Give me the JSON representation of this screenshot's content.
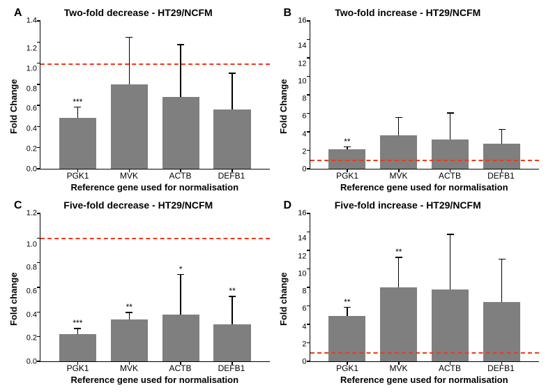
{
  "bar_color": "#7f7f7f",
  "refline_color": "#e83c1c",
  "axis_color": "#000000",
  "background_color": "#ffffff",
  "title_fontsize": 14,
  "label_fontsize": 13,
  "tick_fontsize": 11,
  "categories": [
    "PGK1",
    "MVK",
    "ACTB",
    "DEFB1"
  ],
  "xlabel": "Reference gene used for normalisation",
  "panels": {
    "A": {
      "letter": "A",
      "title": "Two-fold decrease - HT29/NCFM",
      "ylabel": "Fold Change",
      "type": "bar",
      "ylim": [
        0,
        1.4
      ],
      "ytick_step": 0.2,
      "refline": 1.0,
      "bars": [
        {
          "value": 0.48,
          "err": 0.11,
          "sig": "***"
        },
        {
          "value": 0.8,
          "err": 0.45,
          "sig": ""
        },
        {
          "value": 0.68,
          "err": 0.5,
          "sig": ""
        },
        {
          "value": 0.56,
          "err": 0.35,
          "sig": ""
        }
      ]
    },
    "B": {
      "letter": "B",
      "title": "Two-fold increase - HT29/NCFM",
      "ylabel": "Fold Change",
      "type": "bar",
      "ylim": [
        0,
        16
      ],
      "ytick_step": 2,
      "refline": 1.0,
      "bars": [
        {
          "value": 2.1,
          "err": 0.35,
          "sig": "**"
        },
        {
          "value": 3.6,
          "err": 2.0,
          "sig": ""
        },
        {
          "value": 3.2,
          "err": 2.9,
          "sig": ""
        },
        {
          "value": 2.7,
          "err": 1.6,
          "sig": ""
        }
      ]
    },
    "C": {
      "letter": "C",
      "title": "Five-fold decrease - HT29/NCFM",
      "ylabel": "Fold change",
      "type": "bar",
      "ylim": [
        0,
        1.2
      ],
      "ytick_step": 0.2,
      "refline": 1.0,
      "bars": [
        {
          "value": 0.22,
          "err": 0.05,
          "sig": "***"
        },
        {
          "value": 0.34,
          "err": 0.06,
          "sig": "**"
        },
        {
          "value": 0.38,
          "err": 0.33,
          "sig": "*"
        },
        {
          "value": 0.3,
          "err": 0.23,
          "sig": "**"
        }
      ]
    },
    "D": {
      "letter": "D",
      "title": "Five-fold increase - HT29/NCFM",
      "ylabel": "Fold change",
      "type": "bar",
      "ylim": [
        0,
        16
      ],
      "ytick_step": 2,
      "refline": 1.0,
      "bars": [
        {
          "value": 4.9,
          "err": 1.0,
          "sig": "**"
        },
        {
          "value": 8.0,
          "err": 3.3,
          "sig": "**"
        },
        {
          "value": 7.8,
          "err": 6.0,
          "sig": ""
        },
        {
          "value": 6.4,
          "err": 4.7,
          "sig": ""
        }
      ]
    }
  }
}
